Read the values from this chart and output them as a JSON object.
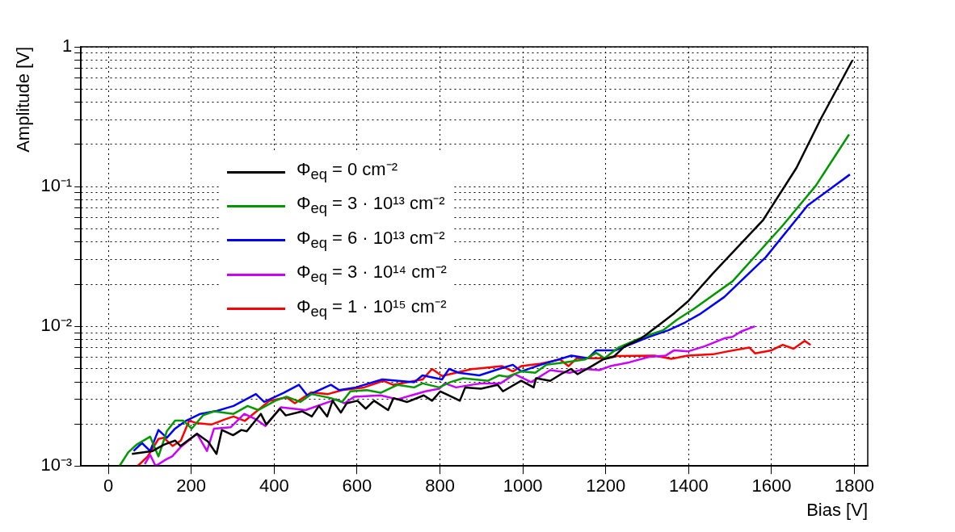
{
  "chart_data": {
    "type": "line",
    "xlabel": "Bias [V]",
    "ylabel": "Amplitude [V]",
    "log": "y",
    "grid": true,
    "legend": "left",
    "xlim": [
      -66,
      1832
    ],
    "xticks": [
      0,
      200,
      400,
      600,
      800,
      1000,
      1200,
      1400,
      1600,
      1800
    ],
    "ylim": [
      0.001,
      1
    ],
    "yticks": [
      {
        "value": 0.001,
        "label": "10⁻³"
      },
      {
        "value": 0.002,
        "label": null
      },
      {
        "value": 0.003,
        "label": null
      },
      {
        "value": 0.004,
        "label": null
      },
      {
        "value": 0.005,
        "label": null
      },
      {
        "value": 0.006,
        "label": null
      },
      {
        "value": 0.007,
        "label": null
      },
      {
        "value": 0.008,
        "label": null
      },
      {
        "value": 0.009,
        "label": null
      },
      {
        "value": 0.01,
        "label": "10⁻²"
      },
      {
        "value": 0.02,
        "label": null
      },
      {
        "value": 0.03,
        "label": null
      },
      {
        "value": 0.04,
        "label": null
      },
      {
        "value": 0.05,
        "label": null
      },
      {
        "value": 0.06,
        "label": null
      },
      {
        "value": 0.07,
        "label": null
      },
      {
        "value": 0.08,
        "label": null
      },
      {
        "value": 0.09,
        "label": null
      },
      {
        "value": 0.1,
        "label": "10⁻¹"
      },
      {
        "value": 0.2,
        "label": null
      },
      {
        "value": 0.3,
        "label": null
      },
      {
        "value": 0.4,
        "label": null
      },
      {
        "value": 0.5,
        "label": null
      },
      {
        "value": 0.6,
        "label": null
      },
      {
        "value": 0.7,
        "label": null
      },
      {
        "value": 0.8,
        "label": null
      },
      {
        "value": 0.9,
        "label": null
      },
      1
    ],
    "series": [
      {
        "name": "Φ$_{eq}$ = 0 cm⁻²",
        "color": "#000000",
        "x": [
          57,
          107,
          134,
          161,
          174,
          214,
          241,
          261,
          274,
          301,
          321,
          334,
          368,
          381,
          414,
          428,
          468,
          491,
          508,
          528,
          541,
          561,
          575,
          601,
          621,
          641,
          675,
          688,
          721,
          761,
          781,
          801,
          828,
          848,
          861,
          899,
          939,
          952,
          996,
          1026,
          1032,
          1066,
          1092,
          1116,
          1132,
          1166,
          1193,
          1219,
          1246,
          1286,
          1333,
          1366,
          1399,
          1459,
          1580,
          1660,
          1720,
          1795
        ],
        "values": [
          0.00122,
          0.00128,
          0.00142,
          0.00152,
          0.00139,
          0.0017,
          0.00149,
          0.00122,
          0.00181,
          0.00166,
          0.00181,
          0.00177,
          0.00236,
          0.00198,
          0.00257,
          0.0023,
          0.00246,
          0.00226,
          0.00269,
          0.00226,
          0.00293,
          0.00241,
          0.00281,
          0.00293,
          0.00257,
          0.00293,
          0.00251,
          0.00306,
          0.00287,
          0.0032,
          0.00293,
          0.00342,
          0.00313,
          0.00293,
          0.00365,
          0.00357,
          0.00381,
          0.00342,
          0.00407,
          0.00365,
          0.00425,
          0.00407,
          0.00454,
          0.00495,
          0.00454,
          0.00518,
          0.00578,
          0.00604,
          0.00719,
          0.0082,
          0.01045,
          0.01245,
          0.01514,
          0.024,
          0.0578,
          0.136,
          0.31,
          0.8
        ]
      },
      {
        "name": "Φ$_{eq}$ = 3 · 10¹³ cm⁻²",
        "color": "#009900",
        "x": [
          27,
          48,
          68,
          101,
          121,
          141,
          161,
          181,
          201,
          229,
          255,
          302,
          336,
          362,
          403,
          430,
          463,
          490,
          537,
          564,
          584,
          624,
          657,
          698,
          738,
          758,
          798,
          825,
          856,
          916,
          943,
          963,
          996,
          1030,
          1057,
          1104,
          1150,
          1177,
          1197,
          1231,
          1291,
          1338,
          1372,
          1412,
          1506,
          1627,
          1707,
          1787
        ],
        "values": [
          0.001,
          0.00125,
          0.00142,
          0.00162,
          0.00117,
          0.00177,
          0.00211,
          0.00211,
          0.00185,
          0.00231,
          0.00246,
          0.00236,
          0.00269,
          0.00251,
          0.00293,
          0.00313,
          0.00287,
          0.00327,
          0.00306,
          0.00287,
          0.00342,
          0.00349,
          0.00334,
          0.00381,
          0.00365,
          0.0039,
          0.00365,
          0.00398,
          0.00425,
          0.00407,
          0.00445,
          0.00435,
          0.00475,
          0.00465,
          0.0053,
          0.00553,
          0.00578,
          0.00645,
          0.0059,
          0.00705,
          0.0084,
          0.00935,
          0.01115,
          0.0133,
          0.021,
          0.0527,
          0.1016,
          0.236
        ]
      },
      {
        "name": "Φ$_{eq}$ = 6 · 10¹³ cm⁻²",
        "color": "#0000ff",
        "x": [
          61,
          81,
          101,
          121,
          141,
          161,
          188,
          222,
          262,
          302,
          356,
          376,
          423,
          460,
          480,
          537,
          557,
          597,
          661,
          738,
          758,
          805,
          822,
          845,
          895,
          943,
          976,
          996,
          1043,
          1117,
          1157,
          1177,
          1224,
          1257,
          1304,
          1351,
          1392,
          1426,
          1486,
          1586,
          1687,
          1789
        ],
        "values": [
          0.00128,
          0.00146,
          0.00128,
          0.00181,
          0.00159,
          0.00185,
          0.00211,
          0.00236,
          0.00248,
          0.00269,
          0.00327,
          0.00287,
          0.00334,
          0.00381,
          0.0032,
          0.00381,
          0.00349,
          0.00365,
          0.00416,
          0.00398,
          0.00445,
          0.00416,
          0.00495,
          0.00465,
          0.00445,
          0.00495,
          0.0053,
          0.00475,
          0.0053,
          0.00617,
          0.0059,
          0.00673,
          0.00673,
          0.00736,
          0.0084,
          0.00935,
          0.01067,
          0.01216,
          0.0162,
          0.0312,
          0.0732,
          0.122
        ]
      },
      {
        "name": "Φ$_{eq}$ = 3 · 10¹⁴ cm⁻²",
        "color": "#cc00ff",
        "x": [
          88,
          101,
          114,
          141,
          154,
          174,
          214,
          238,
          255,
          295,
          328,
          356,
          379,
          416,
          476,
          550,
          570,
          593,
          657,
          698,
          765,
          798,
          812,
          839,
          886,
          899,
          946,
          980,
          1020,
          1066,
          1113,
          1150,
          1184,
          1211,
          1258,
          1305,
          1345,
          1365,
          1398,
          1439,
          1486,
          1506,
          1526,
          1560
        ],
        "values": [
          0.00103,
          0.0012,
          0.001,
          0.00112,
          0.00117,
          0.00136,
          0.0017,
          0.00128,
          0.00185,
          0.00189,
          0.00236,
          0.00216,
          0.00193,
          0.00263,
          0.00251,
          0.003,
          0.00281,
          0.00313,
          0.0032,
          0.003,
          0.00342,
          0.00357,
          0.0039,
          0.00365,
          0.00385,
          0.0039,
          0.0039,
          0.00454,
          0.00398,
          0.00485,
          0.00465,
          0.00495,
          0.00485,
          0.00518,
          0.00553,
          0.00604,
          0.00617,
          0.00673,
          0.0066,
          0.00719,
          0.0082,
          0.0084,
          0.00916,
          0.01
        ]
      },
      {
        "name": "Φ$_{eq}$ = 1 · 10¹⁵ cm⁻²",
        "color": "#ff0000",
        "x": [
          71,
          95,
          121,
          134,
          155,
          175,
          195,
          215,
          249,
          282,
          302,
          329,
          389,
          430,
          450,
          490,
          530,
          564,
          617,
          663,
          687,
          758,
          781,
          805,
          878,
          883,
          950,
          976,
          996,
          1043,
          1090,
          1110,
          1130,
          1197,
          1224,
          1318,
          1358,
          1398,
          1459,
          1493,
          1546,
          1560,
          1600,
          1627,
          1653,
          1680,
          1694
        ],
        "values": [
          0.001,
          0.00117,
          0.00156,
          0.00159,
          0.00139,
          0.00152,
          0.00211,
          0.00202,
          0.00198,
          0.00216,
          0.00226,
          0.0021,
          0.00293,
          0.0031,
          0.00281,
          0.00337,
          0.00327,
          0.00349,
          0.00365,
          0.00407,
          0.00381,
          0.00416,
          0.00495,
          0.0044,
          0.00495,
          0.00495,
          0.00518,
          0.00475,
          0.00518,
          0.0054,
          0.00578,
          0.00518,
          0.0059,
          0.0059,
          0.00612,
          0.00617,
          0.00585,
          0.00617,
          0.0063,
          0.0066,
          0.00705,
          0.0064,
          0.00673,
          0.00736,
          0.0069,
          0.00785,
          0.00736
        ]
      }
    ]
  }
}
